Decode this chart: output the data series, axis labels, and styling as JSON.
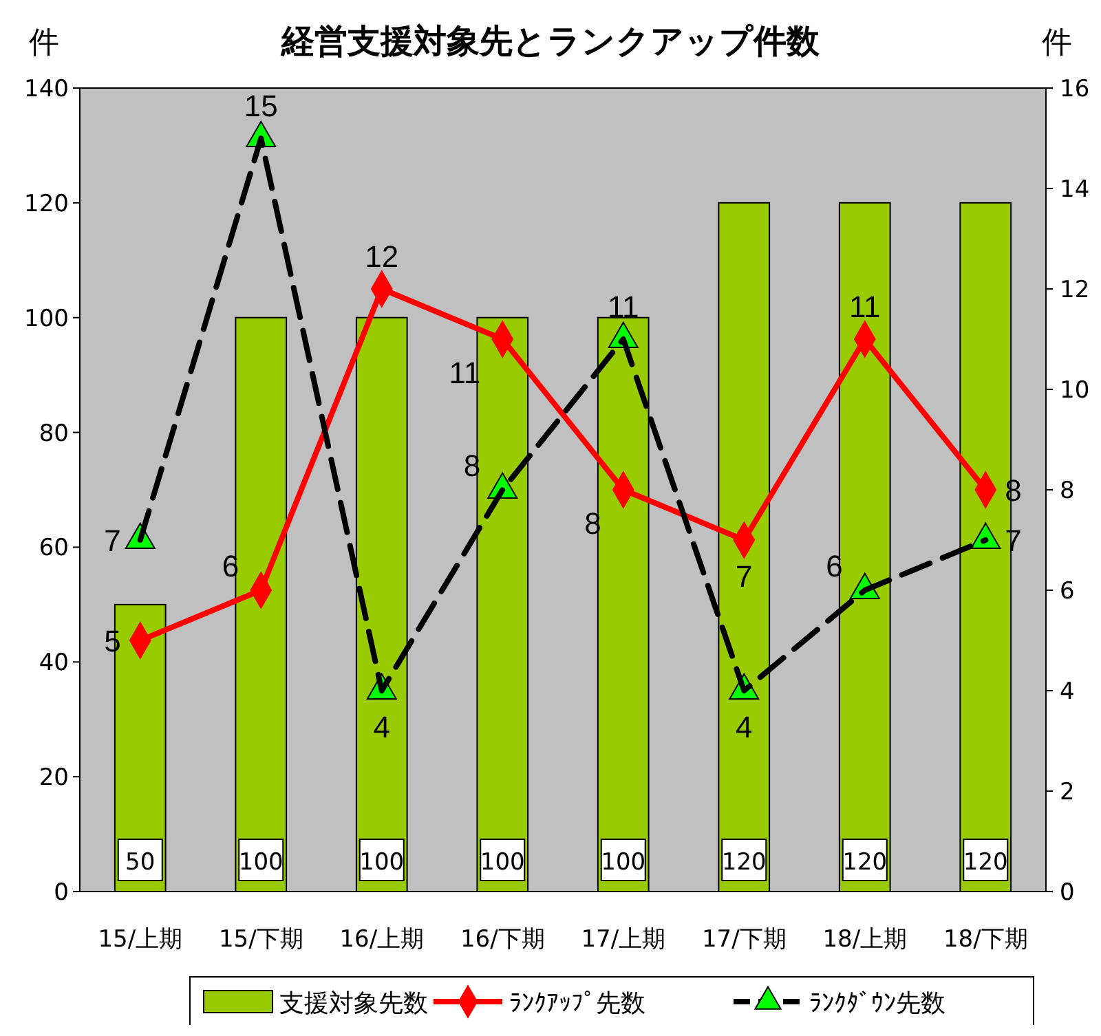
{
  "chart_data": {
    "type": "bar",
    "title": "経営支援対象先とランクアップ件数",
    "ylabel": "件",
    "y2label": "件",
    "categories": [
      "15/上期",
      "15/下期",
      "16/上期",
      "16/下期",
      "17/上期",
      "17/下期",
      "18/上期",
      "18/下期"
    ],
    "series": [
      {
        "name": "支援対象先数",
        "color": "#99cc00",
        "values": [
          50,
          100,
          100,
          100,
          100,
          120,
          120,
          120
        ]
      },
      {
        "name": "ﾗﾝｸｱｯﾌﾟ先数",
        "type": "line",
        "axis": "y2",
        "color": "#ff0000",
        "marker": "diamond",
        "line_style": "solid",
        "values": [
          5,
          6,
          12,
          11,
          8,
          7,
          11,
          8
        ]
      },
      {
        "name": "ﾗﾝｸﾀﾞｳﾝ先数",
        "type": "line",
        "axis": "y2",
        "color": "#000000",
        "marker": "triangle",
        "line_style": "dashed",
        "values": [
          7,
          15,
          4,
          8,
          11,
          4,
          6,
          7
        ]
      }
    ],
    "ylim": [
      0,
      140
    ],
    "yticks": [
      0,
      20,
      40,
      60,
      80,
      100,
      120,
      140
    ],
    "y2lim": [
      0,
      16
    ],
    "y2ticks": [
      0,
      2,
      4,
      6,
      8,
      10,
      12,
      14,
      16
    ],
    "grid": false,
    "legend": "bottom",
    "data_labels": true
  }
}
